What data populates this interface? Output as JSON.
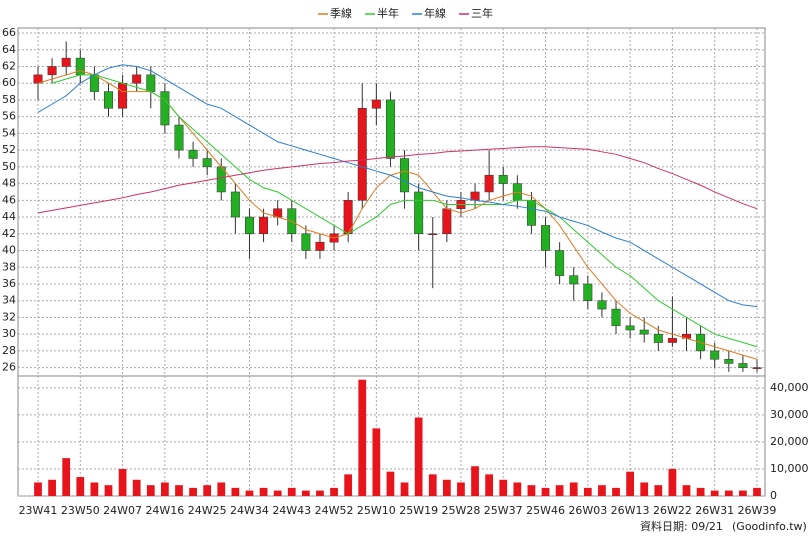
{
  "chart_data": {
    "type": "candlestick",
    "legend": "top",
    "categories": [
      "23W41",
      null,
      null,
      "23W50",
      null,
      null,
      "24W07",
      null,
      null,
      "24W16",
      null,
      null,
      "24W25",
      null,
      null,
      "24W34",
      null,
      null,
      "24W43",
      null,
      null,
      "24W52",
      null,
      null,
      "25W10",
      null,
      null,
      "25W19",
      null,
      null,
      "25W28",
      null,
      null,
      "25W37",
      null,
      null,
      "25W46",
      null,
      null,
      "26W03",
      null,
      null,
      "26W13",
      null,
      null,
      "26W22",
      null,
      null,
      "26W31",
      null,
      null,
      "26W39"
    ],
    "open": [
      60,
      61,
      62,
      63,
      61,
      59,
      57,
      60,
      61,
      59,
      55,
      52,
      51,
      50,
      47,
      44,
      42,
      44,
      45,
      42,
      40,
      41,
      42,
      46,
      57,
      58,
      51,
      47,
      42,
      42,
      45,
      46,
      47,
      49,
      48,
      46,
      43,
      40,
      37,
      36,
      34,
      33,
      31,
      30.5,
      30,
      29,
      29.5,
      30,
      28,
      27,
      26.5,
      26
    ],
    "high": [
      62,
      63,
      65,
      64,
      62,
      60,
      61,
      62,
      62,
      60,
      56,
      53,
      52,
      51,
      48,
      45,
      45,
      46,
      46,
      43,
      42,
      43,
      47,
      60,
      60,
      59,
      52,
      48,
      44,
      46,
      47,
      48,
      52,
      50,
      49,
      47,
      44,
      41,
      38,
      37,
      35,
      34,
      32,
      32,
      31,
      34.5,
      32,
      31,
      29,
      28,
      27.5,
      27
    ],
    "low": [
      58,
      60,
      61,
      60,
      58,
      56,
      56,
      59,
      57,
      54,
      51,
      50,
      49,
      46,
      42,
      39,
      41,
      43,
      41,
      39,
      39,
      40,
      41,
      45,
      55,
      50,
      45,
      40,
      35.5,
      41,
      44,
      45,
      46,
      46,
      45,
      42,
      38,
      36,
      34,
      33,
      32,
      30,
      29.5,
      29,
      28,
      28.5,
      28,
      27,
      26,
      25.5,
      25.5,
      25.5
    ],
    "close": [
      61,
      62,
      63,
      61,
      59,
      57,
      60,
      61,
      59,
      55,
      52,
      51,
      50,
      47,
      44,
      42,
      44,
      45,
      42,
      40,
      41,
      42,
      46,
      57,
      58,
      51,
      47,
      42,
      42,
      45,
      46,
      47,
      49,
      48,
      46,
      43,
      40,
      37,
      36,
      34,
      33,
      31,
      30.5,
      30,
      29,
      29.5,
      30,
      28,
      27,
      26.5,
      26,
      26
    ],
    "up_color": "#e8141c",
    "down_color": "#22b022",
    "series": [
      {
        "name": "季線",
        "color": "#e07a1f",
        "values": [
          60,
          60.5,
          61,
          61.5,
          61,
          60,
          59,
          59,
          59,
          58,
          56,
          54,
          52,
          50,
          48,
          46,
          44.5,
          44,
          43.5,
          42.5,
          42,
          41.5,
          42,
          45,
          47.5,
          49,
          49.5,
          49,
          47,
          45,
          44.5,
          45,
          46,
          46.5,
          47,
          46.5,
          45,
          43,
          40.5,
          38,
          36,
          34,
          32.5,
          31.5,
          30.5,
          30,
          29.5,
          29,
          28.5,
          28,
          27.5,
          27
        ]
      },
      {
        "name": "半年",
        "color": "#2ecc2e",
        "values": [
          null,
          60,
          60.5,
          61,
          61,
          60.5,
          60,
          59.5,
          59,
          58,
          56,
          54.5,
          53,
          51.5,
          50,
          48.5,
          47.5,
          47,
          46,
          45,
          44,
          43,
          42,
          43,
          44,
          45.5,
          46,
          46,
          46,
          45.5,
          45.5,
          45.5,
          45.5,
          45.5,
          46,
          46,
          45,
          44,
          42.5,
          41,
          39.5,
          38,
          37,
          35.5,
          34,
          33,
          32,
          31,
          30,
          29.5,
          29,
          28.5
        ]
      },
      {
        "name": "年線",
        "color": "#2a7fd4",
        "values": [
          56.5,
          57.5,
          58.5,
          60,
          61,
          61.8,
          62.2,
          62,
          61.5,
          60.5,
          59.5,
          58.5,
          57.5,
          57,
          56,
          55,
          54,
          53,
          52.5,
          52,
          51.5,
          51,
          50.5,
          50,
          49.5,
          49,
          48.3,
          47.5,
          47,
          46.5,
          46.3,
          46,
          45.8,
          45.5,
          45.3,
          45,
          44.7,
          44,
          43.5,
          43,
          42.2,
          41.5,
          41,
          40,
          39,
          38,
          37,
          36,
          35,
          34,
          33.5,
          33.3
        ]
      },
      {
        "name": "三年",
        "color": "#d0306a",
        "values": [
          44.5,
          44.8,
          45.1,
          45.4,
          45.7,
          46,
          46.3,
          46.7,
          47,
          47.4,
          47.8,
          48.1,
          48.4,
          48.7,
          49,
          49.3,
          49.6,
          49.8,
          50,
          50.2,
          50.4,
          50.5,
          50.7,
          50.8,
          51,
          51.2,
          51.3,
          51.5,
          51.6,
          51.8,
          51.9,
          52,
          52.1,
          52.2,
          52.3,
          52.4,
          52.4,
          52.3,
          52.2,
          52.1,
          51.8,
          51.5,
          51,
          50.5,
          49.8,
          49.2,
          48.5,
          47.8,
          47,
          46.3,
          45.6,
          45
        ]
      }
    ],
    "ylim": [
      25,
      66.6
    ],
    "yticks": [
      26,
      28,
      30,
      32,
      34,
      36,
      38,
      40,
      42,
      44,
      46,
      48,
      50,
      52,
      54,
      56,
      58,
      60,
      62,
      64,
      66
    ],
    "grid": true,
    "volume": {
      "color": "#e8141c",
      "values": [
        5000,
        6000,
        14000,
        7000,
        5000,
        4000,
        10000,
        6000,
        4000,
        5000,
        4000,
        3000,
        4000,
        5000,
        3000,
        2000,
        3000,
        2000,
        3000,
        2000,
        2000,
        3000,
        8000,
        43000,
        25000,
        9000,
        5000,
        29000,
        8000,
        6000,
        5000,
        11000,
        8000,
        6000,
        5000,
        4000,
        3000,
        4000,
        5000,
        3000,
        4000,
        3000,
        9000,
        5000,
        4000,
        10000,
        4000,
        3000,
        2000,
        2000,
        2000,
        3000
      ],
      "ylim": [
        0,
        44000
      ],
      "yticks": [
        0,
        {
          "value": 10000,
          "label": "10,000"
        },
        {
          "value": 20000,
          "label": "20,000"
        },
        {
          "value": 30000,
          "label": "30,000"
        },
        {
          "value": 40000,
          "label": "40,000"
        }
      ]
    },
    "footer_date": "資料日期: 09/21",
    "source": "(Goodinfo.tw)"
  }
}
